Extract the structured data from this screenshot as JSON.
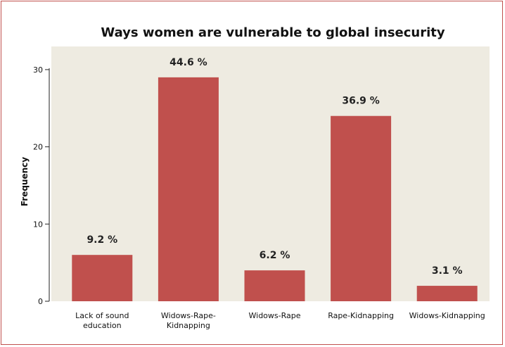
{
  "chart_data": {
    "type": "bar",
    "title": "Ways women are vulnerable to global insecurity",
    "xlabel": "",
    "ylabel": "Frequency",
    "categories": [
      "Lack of sound education",
      "Widows-Rape-Kidnapping",
      "Widows-Rape",
      "Rape-Kidnapping",
      "Widows-Kidnapping"
    ],
    "category_lines": [
      [
        "Lack of sound",
        "education"
      ],
      [
        "Widows-Rape-",
        "Kidnapping"
      ],
      [
        "Widows-Rape"
      ],
      [
        "Rape-Kidnapping"
      ],
      [
        "Widows-Kidnapping"
      ]
    ],
    "values": [
      6,
      29,
      4,
      24,
      2
    ],
    "data_labels": [
      "9.2 %",
      "44.6 %",
      "6.2 %",
      "36.9 %",
      "3.1 %"
    ],
    "ylim": [
      0,
      33
    ],
    "yticks": [
      0,
      10,
      20,
      30
    ],
    "ytick_labels": [
      "0",
      "10",
      "20",
      "30"
    ],
    "grid": false,
    "colors": {
      "bar": "#c0504d",
      "plot_background": "#eeebe1",
      "border": "#c0504d"
    }
  }
}
